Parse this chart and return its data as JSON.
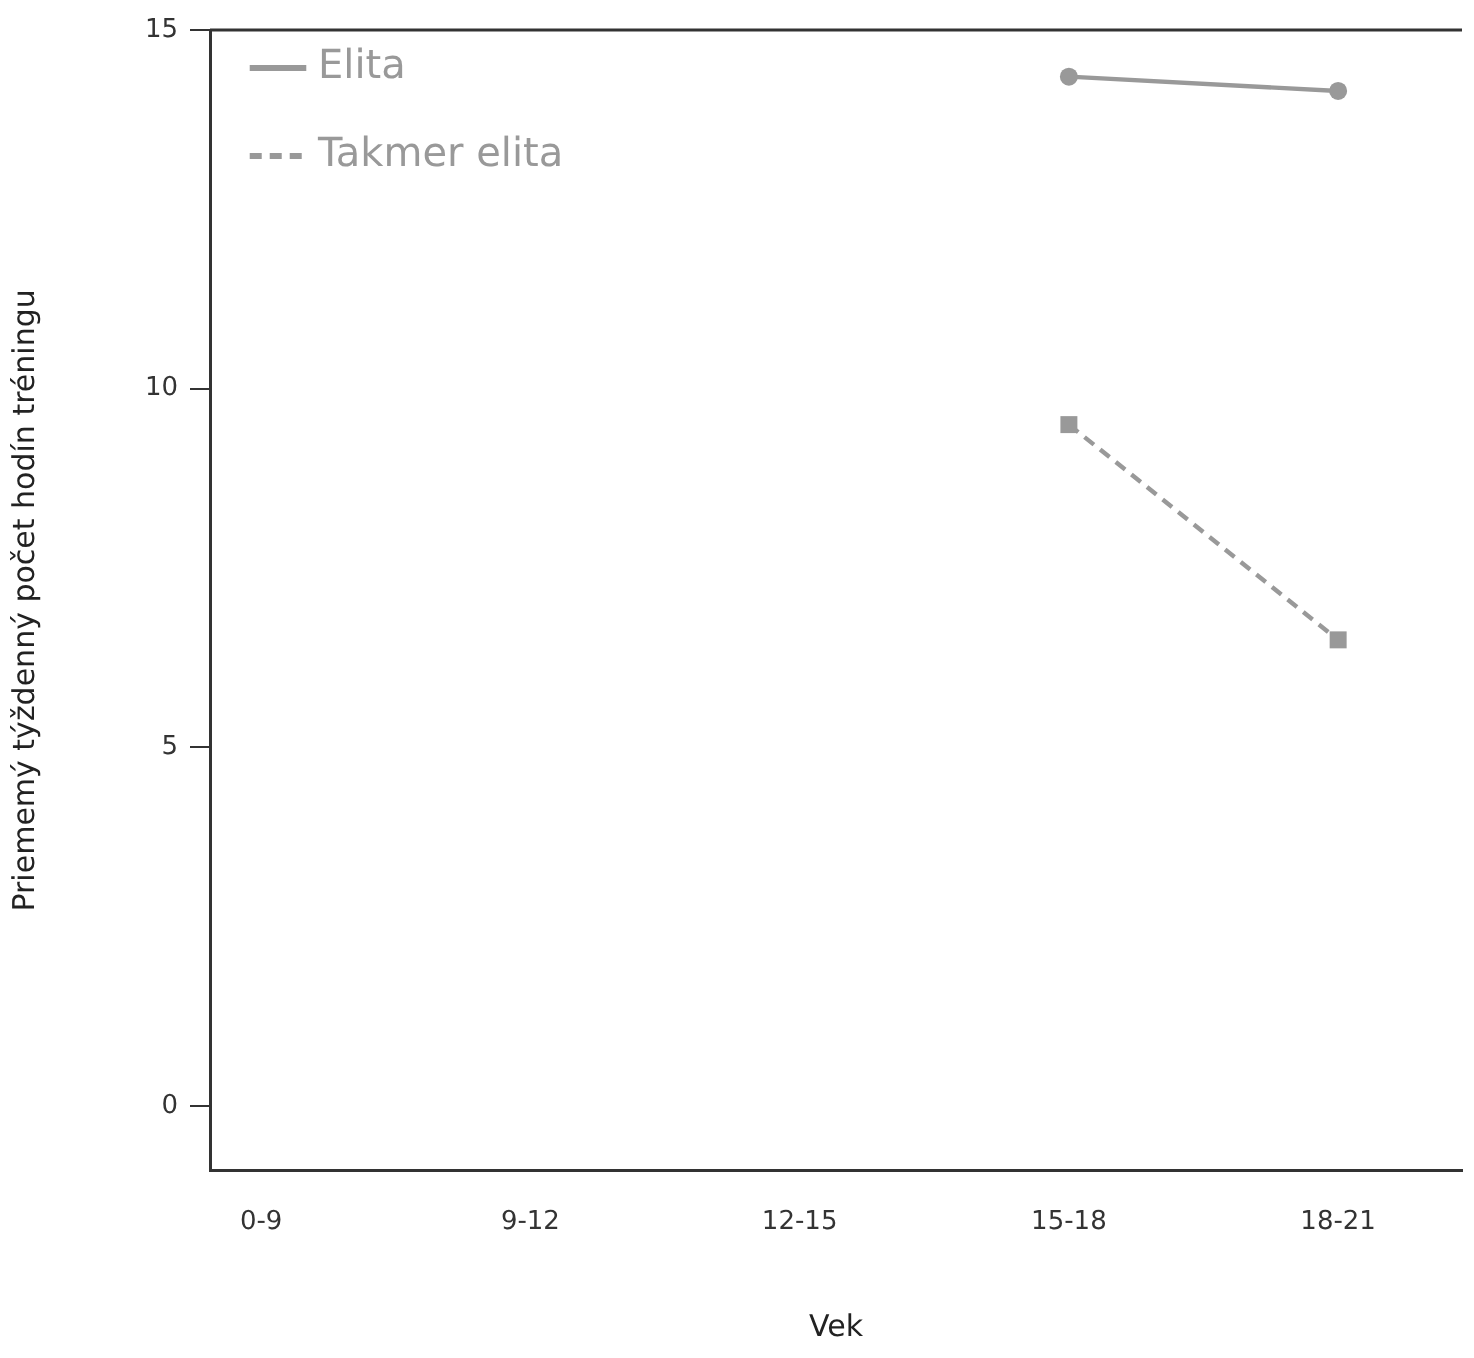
{
  "chart_data": {
    "type": "line",
    "xlabel": "Vek",
    "ylabel": "Priememý týždenný počet hodín tréningu",
    "categories": [
      "0-9",
      "9-12",
      "12-15",
      "15-18",
      "18-21"
    ],
    "series": [
      {
        "name": "Elita",
        "color": "#999999",
        "values": [
          null,
          null,
          null,
          14.35,
          14.15
        ],
        "marker": "circle",
        "line_style": "solid"
      },
      {
        "name": "Takmer elita",
        "color": "#999999",
        "values": [
          null,
          null,
          null,
          9.5,
          6.5
        ],
        "marker": "square",
        "line_style": "dashed"
      }
    ],
    "ylim": [
      -0.9,
      15
    ],
    "yticks": [
      0,
      5,
      10,
      15
    ],
    "grid": false,
    "legend": "top left"
  }
}
